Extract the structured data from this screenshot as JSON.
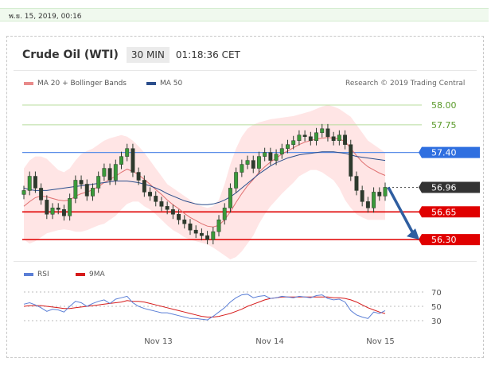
{
  "datestamp": "พ.ย. 15, 2019, 00:16",
  "header": {
    "title": "Crude Oil (WTI)",
    "timeframe": "30 MIN",
    "clock": "01:18:36 CET"
  },
  "legend": {
    "ma20": {
      "label": "MA 20 + Bollinger Bands",
      "color": "#e88a8a"
    },
    "ma50": {
      "label": "MA 50",
      "color": "#2b4e8c"
    },
    "rsi": {
      "label": "RSI",
      "color": "#5b7fd6"
    },
    "ma9": {
      "label": "9MA",
      "color": "#d61b1b"
    }
  },
  "research": "Research © 2019 Trading Central",
  "chart_data": {
    "type": "line",
    "price_ylim": [
      56.05,
      58.1
    ],
    "levels": [
      {
        "value": 58.0,
        "label": "58.00",
        "kind": "target-green"
      },
      {
        "value": 57.75,
        "label": "57.75",
        "kind": "target-green"
      },
      {
        "value": 57.4,
        "label": "57.40",
        "kind": "resistance"
      },
      {
        "value": 56.96,
        "label": "56.96",
        "kind": "last"
      },
      {
        "value": 56.65,
        "label": "56.65",
        "kind": "support"
      },
      {
        "value": 56.3,
        "label": "56.30",
        "kind": "support"
      }
    ],
    "x_tick_labels": [
      "Nov 13",
      "Nov 14",
      "Nov 15"
    ],
    "price_series": [
      {
        "name": "price",
        "values": [
          56.92,
          57.1,
          56.95,
          56.8,
          56.62,
          56.7,
          56.68,
          56.6,
          56.82,
          57.05,
          57.0,
          56.85,
          56.95,
          57.1,
          57.2,
          57.05,
          57.25,
          57.35,
          57.45,
          57.15,
          57.05,
          56.9,
          56.85,
          56.78,
          56.72,
          56.68,
          56.62,
          56.55,
          56.5,
          56.42,
          56.38,
          56.35,
          56.3,
          56.4,
          56.55,
          56.7,
          56.95,
          57.15,
          57.25,
          57.3,
          57.2,
          57.35,
          57.4,
          57.3,
          57.38,
          57.45,
          57.5,
          57.55,
          57.62,
          57.6,
          57.55,
          57.65,
          57.7,
          57.6,
          57.55,
          57.62,
          57.5,
          57.1,
          56.92,
          56.78,
          56.7,
          56.9,
          56.85,
          56.96
        ]
      },
      {
        "name": "MA 20",
        "values": [
          56.72,
          56.78,
          56.83,
          56.85,
          56.84,
          56.82,
          56.8,
          56.79,
          56.8,
          56.85,
          56.88,
          56.9,
          56.93,
          56.97,
          57.02,
          57.06,
          57.1,
          57.15,
          57.19,
          57.16,
          57.12,
          57.06,
          57.0,
          56.93,
          56.87,
          56.8,
          56.74,
          56.69,
          56.63,
          56.58,
          56.54,
          56.5,
          56.47,
          56.46,
          56.48,
          56.55,
          56.65,
          56.77,
          56.88,
          56.98,
          57.06,
          57.15,
          57.22,
          57.28,
          57.33,
          57.38,
          57.42,
          57.46,
          57.5,
          57.53,
          57.55,
          57.57,
          57.58,
          57.59,
          57.58,
          57.57,
          57.54,
          57.45,
          57.36,
          57.28,
          57.22,
          57.18,
          57.14,
          57.11
        ]
      },
      {
        "name": "MA 50",
        "values": [
          56.95,
          56.93,
          56.92,
          56.92,
          56.92,
          56.93,
          56.94,
          56.95,
          56.96,
          56.97,
          56.98,
          56.99,
          57.0,
          57.01,
          57.02,
          57.03,
          57.04,
          57.04,
          57.04,
          57.03,
          57.02,
          57.0,
          56.98,
          56.95,
          56.92,
          56.88,
          56.85,
          56.82,
          56.79,
          56.77,
          56.75,
          56.74,
          56.74,
          56.75,
          56.77,
          56.8,
          56.84,
          56.89,
          56.95,
          57.01,
          57.07,
          57.13,
          57.18,
          57.23,
          57.27,
          57.3,
          57.33,
          57.35,
          57.37,
          57.38,
          57.39,
          57.4,
          57.41,
          57.41,
          57.41,
          57.4,
          57.39,
          57.37,
          57.35,
          57.34,
          57.33,
          57.32,
          57.31,
          57.3
        ]
      },
      {
        "name": "BB upper",
        "values": [
          57.2,
          57.3,
          57.35,
          57.35,
          57.32,
          57.25,
          57.18,
          57.15,
          57.2,
          57.3,
          57.38,
          57.42,
          57.45,
          57.5,
          57.55,
          57.58,
          57.6,
          57.62,
          57.6,
          57.55,
          57.48,
          57.4,
          57.3,
          57.2,
          57.1,
          57.0,
          56.95,
          56.9,
          56.85,
          56.8,
          56.75,
          56.72,
          56.7,
          56.72,
          56.8,
          57.0,
          57.25,
          57.45,
          57.6,
          57.7,
          57.75,
          57.78,
          57.8,
          57.82,
          57.83,
          57.84,
          57.85,
          57.86,
          57.88,
          57.9,
          57.92,
          57.95,
          57.98,
          58.0,
          57.98,
          57.95,
          57.9,
          57.85,
          57.75,
          57.65,
          57.55,
          57.5,
          57.45,
          57.4
        ]
      },
      {
        "name": "BB lower",
        "values": [
          56.3,
          56.25,
          56.28,
          56.33,
          56.38,
          56.4,
          56.42,
          56.43,
          56.42,
          56.4,
          56.4,
          56.42,
          56.45,
          56.48,
          56.5,
          56.55,
          56.6,
          56.68,
          56.75,
          56.78,
          56.78,
          56.72,
          56.68,
          56.62,
          56.55,
          56.48,
          56.42,
          56.38,
          56.33,
          56.3,
          56.28,
          56.26,
          56.24,
          56.2,
          56.15,
          56.1,
          56.05,
          56.08,
          56.15,
          56.25,
          56.35,
          56.5,
          56.62,
          56.72,
          56.8,
          56.88,
          56.95,
          57.02,
          57.1,
          57.14,
          57.18,
          57.18,
          57.15,
          57.1,
          57.05,
          56.95,
          56.8,
          56.7,
          56.62,
          56.58,
          56.55,
          56.55,
          56.55,
          56.55
        ]
      }
    ],
    "rsi_ylim": [
      20,
      80
    ],
    "rsi_ticks": [
      30,
      50,
      70
    ],
    "rsi_series": [
      {
        "name": "RSI",
        "values": [
          53,
          55,
          52,
          48,
          43,
          46,
          45,
          42,
          50,
          57,
          55,
          50,
          54,
          57,
          59,
          54,
          60,
          62,
          64,
          55,
          50,
          47,
          45,
          43,
          41,
          41,
          39,
          37,
          35,
          33,
          33,
          32,
          31,
          36,
          42,
          48,
          56,
          62,
          66,
          67,
          62,
          64,
          65,
          61,
          62,
          64,
          63,
          62,
          64,
          63,
          62,
          65,
          66,
          61,
          59,
          60,
          56,
          44,
          38,
          35,
          33,
          42,
          40,
          44
        ]
      },
      {
        "name": "9MA",
        "values": [
          50,
          51,
          51,
          51,
          50,
          49,
          48,
          47,
          47,
          48,
          49,
          50,
          51,
          52,
          53,
          54,
          55,
          56,
          58,
          57,
          57,
          56,
          54,
          52,
          50,
          48,
          46,
          44,
          42,
          40,
          38,
          36,
          35,
          35,
          36,
          38,
          40,
          43,
          46,
          50,
          53,
          56,
          59,
          61,
          62,
          63,
          63,
          63,
          63,
          63,
          63,
          63,
          63,
          63,
          62,
          62,
          61,
          59,
          56,
          52,
          48,
          45,
          42,
          40
        ]
      }
    ]
  }
}
